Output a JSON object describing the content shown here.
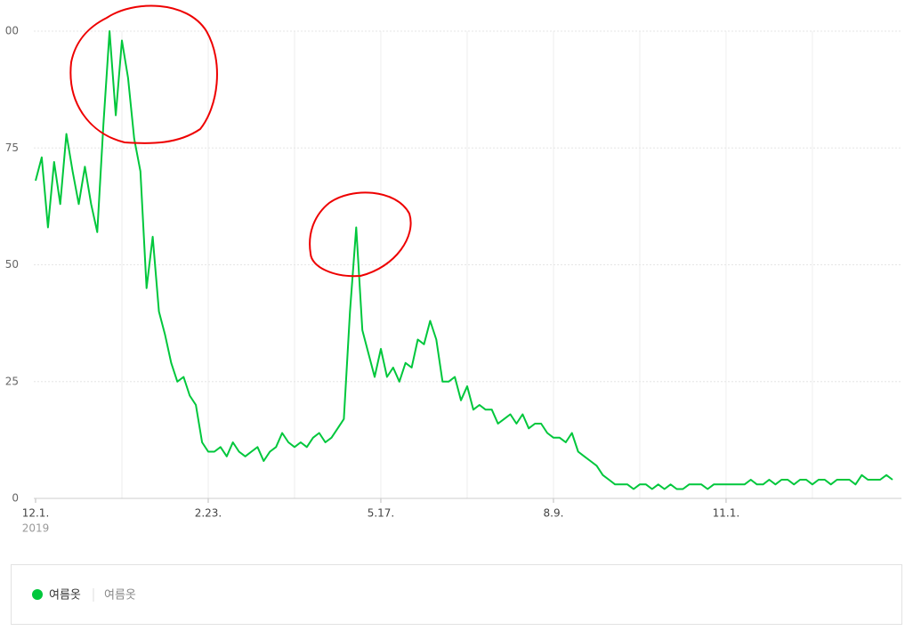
{
  "chart_data": {
    "type": "line",
    "categories": [
      "12.1.",
      null,
      null,
      null,
      null,
      null,
      null,
      null,
      null,
      null,
      null,
      null,
      null,
      null,
      null,
      null,
      null,
      null,
      null,
      null,
      null,
      null,
      null,
      null,
      null,
      null,
      null,
      null,
      "2.23.",
      null,
      null,
      null,
      null,
      null,
      null,
      null,
      null,
      null,
      null,
      null,
      null,
      null,
      null,
      null,
      null,
      null,
      null,
      null,
      null,
      null,
      null,
      null,
      null,
      null,
      null,
      null,
      "5.17.",
      null,
      null,
      null,
      null,
      null,
      null,
      null,
      null,
      null,
      null,
      null,
      null,
      null,
      null,
      null,
      null,
      null,
      null,
      null,
      null,
      null,
      null,
      null,
      null,
      null,
      null,
      null,
      "8.9.",
      null,
      null,
      null,
      null,
      null,
      null,
      null,
      null,
      null,
      null,
      null,
      null,
      null,
      null,
      null,
      null,
      null,
      null,
      null,
      null,
      null,
      null,
      null,
      null,
      null,
      null,
      null,
      "11.1.",
      null,
      null,
      null,
      null,
      null,
      null,
      null,
      null,
      null,
      null,
      null,
      null,
      null,
      null,
      null,
      null,
      null,
      null,
      null,
      null,
      null,
      null,
      null,
      null,
      null,
      null,
      null
    ],
    "year_label": "2019",
    "series": [
      {
        "name": "여름옷",
        "keyword": "여름옷",
        "color": "#00c73c",
        "values": [
          68,
          73,
          58,
          72,
          63,
          78,
          70,
          63,
          71,
          63,
          57,
          80,
          100,
          82,
          98,
          90,
          77,
          70,
          45,
          56,
          40,
          35,
          29,
          25,
          26,
          22,
          20,
          12,
          10,
          10,
          11,
          9,
          12,
          10,
          9,
          10,
          11,
          8,
          10,
          11,
          14,
          12,
          11,
          12,
          11,
          13,
          14,
          12,
          13,
          15,
          17,
          40,
          58,
          36,
          31,
          26,
          32,
          26,
          28,
          25,
          29,
          28,
          34,
          33,
          38,
          34,
          25,
          25,
          26,
          21,
          24,
          19,
          20,
          19,
          19,
          16,
          17,
          18,
          16,
          18,
          15,
          16,
          16,
          14,
          13,
          13,
          12,
          14,
          10,
          9,
          8,
          7,
          5,
          4,
          3,
          3,
          3,
          2,
          3,
          3,
          2,
          3,
          2,
          3,
          2,
          2,
          3,
          3,
          3,
          2,
          3,
          3,
          3,
          3,
          3,
          3,
          4,
          3,
          3,
          4,
          3,
          4,
          4,
          3,
          4,
          4,
          3,
          4,
          4,
          3,
          4,
          4,
          4,
          3,
          5,
          4,
          4,
          4,
          5,
          4
        ]
      }
    ],
    "ylim": [
      0,
      100
    ],
    "yticks": [
      0,
      25,
      50,
      75,
      {
        "value": 100,
        "label": "00"
      }
    ],
    "grid": true
  }
}
